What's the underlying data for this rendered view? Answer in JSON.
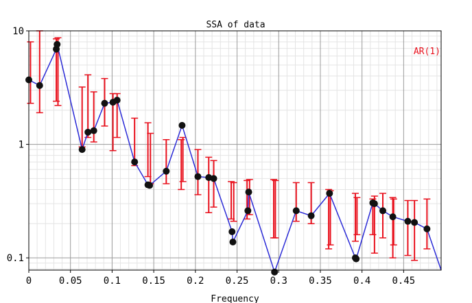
{
  "chart_data": {
    "type": "line",
    "title": "SSA of data",
    "xlabel": "Frequency",
    "ylabel": "",
    "yscale": "log",
    "xlim": [
      0,
      0.495
    ],
    "ylim": [
      0.078,
      10
    ],
    "grid": true,
    "x_ticks": [
      "0",
      "0.05",
      "0.1",
      "0.15",
      "0.2",
      "0.25",
      "0.3",
      "0.35",
      "0.4",
      "0.45"
    ],
    "y_ticks": [
      "10",
      "1",
      "0.1"
    ],
    "legend_label": "AR(1)",
    "legend_position": "top-right",
    "line_color": "#2a2ad6",
    "errorbar_color": "#e8101c",
    "series": [
      {
        "values": [
          {
            "x": 0.0,
            "y": 3.7
          },
          {
            "x": 0.013,
            "y": 3.3
          },
          {
            "x": 0.033,
            "y": 6.9
          },
          {
            "x": 0.034,
            "y": 7.6
          },
          {
            "x": 0.064,
            "y": 0.9
          },
          {
            "x": 0.071,
            "y": 1.28
          },
          {
            "x": 0.078,
            "y": 1.32
          },
          {
            "x": 0.091,
            "y": 2.3
          },
          {
            "x": 0.101,
            "y": 2.35
          },
          {
            "x": 0.106,
            "y": 2.45
          },
          {
            "x": 0.127,
            "y": 0.7
          },
          {
            "x": 0.143,
            "y": 0.44
          },
          {
            "x": 0.145,
            "y": 0.435
          },
          {
            "x": 0.165,
            "y": 0.58
          },
          {
            "x": 0.184,
            "y": 1.47
          },
          {
            "x": 0.203,
            "y": 0.52
          },
          {
            "x": 0.216,
            "y": 0.51
          },
          {
            "x": 0.222,
            "y": 0.5
          },
          {
            "x": 0.244,
            "y": 0.17
          },
          {
            "x": 0.245,
            "y": 0.138
          },
          {
            "x": 0.263,
            "y": 0.26
          },
          {
            "x": 0.264,
            "y": 0.38
          },
          {
            "x": 0.295,
            "y": 0.075
          },
          {
            "x": 0.321,
            "y": 0.26
          },
          {
            "x": 0.339,
            "y": 0.235
          },
          {
            "x": 0.361,
            "y": 0.37
          },
          {
            "x": 0.392,
            "y": 0.1
          },
          {
            "x": 0.393,
            "y": 0.098
          },
          {
            "x": 0.413,
            "y": 0.305
          },
          {
            "x": 0.415,
            "y": 0.3
          },
          {
            "x": 0.425,
            "y": 0.26
          },
          {
            "x": 0.437,
            "y": 0.23
          },
          {
            "x": 0.455,
            "y": 0.21
          },
          {
            "x": 0.463,
            "y": 0.205
          },
          {
            "x": 0.478,
            "y": 0.18
          },
          {
            "x": 0.495,
            "y": 0.078
          }
        ]
      }
    ],
    "error_bars": [
      {
        "x": 0.002,
        "low": 2.3,
        "high": 8.0
      },
      {
        "x": 0.013,
        "low": 1.9,
        "high": 10.0
      },
      {
        "x": 0.033,
        "low": 2.4,
        "high": 8.5
      },
      {
        "x": 0.035,
        "low": 2.2,
        "high": 8.7
      },
      {
        "x": 0.064,
        "low": 0.95,
        "high": 3.2
      },
      {
        "x": 0.071,
        "low": 1.15,
        "high": 4.1
      },
      {
        "x": 0.078,
        "low": 1.05,
        "high": 2.9
      },
      {
        "x": 0.091,
        "low": 1.45,
        "high": 3.8
      },
      {
        "x": 0.101,
        "low": 0.88,
        "high": 2.8
      },
      {
        "x": 0.106,
        "low": 1.15,
        "high": 2.8
      },
      {
        "x": 0.127,
        "low": 0.65,
        "high": 1.7
      },
      {
        "x": 0.143,
        "low": 0.52,
        "high": 1.55
      },
      {
        "x": 0.146,
        "low": 0.45,
        "high": 1.25
      },
      {
        "x": 0.165,
        "low": 0.45,
        "high": 1.1
      },
      {
        "x": 0.183,
        "low": 0.4,
        "high": 1.1
      },
      {
        "x": 0.185,
        "low": 0.47,
        "high": 1.15
      },
      {
        "x": 0.203,
        "low": 0.36,
        "high": 0.9
      },
      {
        "x": 0.216,
        "low": 0.25,
        "high": 0.77
      },
      {
        "x": 0.222,
        "low": 0.28,
        "high": 0.72
      },
      {
        "x": 0.243,
        "low": 0.22,
        "high": 0.47
      },
      {
        "x": 0.246,
        "low": 0.21,
        "high": 0.46
      },
      {
        "x": 0.262,
        "low": 0.22,
        "high": 0.48
      },
      {
        "x": 0.265,
        "low": 0.24,
        "high": 0.49
      },
      {
        "x": 0.294,
        "low": 0.15,
        "high": 0.49
      },
      {
        "x": 0.296,
        "low": 0.15,
        "high": 0.48
      },
      {
        "x": 0.321,
        "low": 0.21,
        "high": 0.46
      },
      {
        "x": 0.339,
        "low": 0.2,
        "high": 0.46
      },
      {
        "x": 0.36,
        "low": 0.12,
        "high": 0.4
      },
      {
        "x": 0.362,
        "low": 0.13,
        "high": 0.39
      },
      {
        "x": 0.392,
        "low": 0.14,
        "high": 0.37
      },
      {
        "x": 0.394,
        "low": 0.16,
        "high": 0.34
      },
      {
        "x": 0.413,
        "low": 0.16,
        "high": 0.33
      },
      {
        "x": 0.415,
        "low": 0.11,
        "high": 0.35
      },
      {
        "x": 0.425,
        "low": 0.15,
        "high": 0.37
      },
      {
        "x": 0.437,
        "low": 0.1,
        "high": 0.34
      },
      {
        "x": 0.438,
        "low": 0.13,
        "high": 0.33
      },
      {
        "x": 0.455,
        "low": 0.105,
        "high": 0.32
      },
      {
        "x": 0.463,
        "low": 0.095,
        "high": 0.32
      },
      {
        "x": 0.478,
        "low": 0.12,
        "high": 0.33
      }
    ]
  }
}
